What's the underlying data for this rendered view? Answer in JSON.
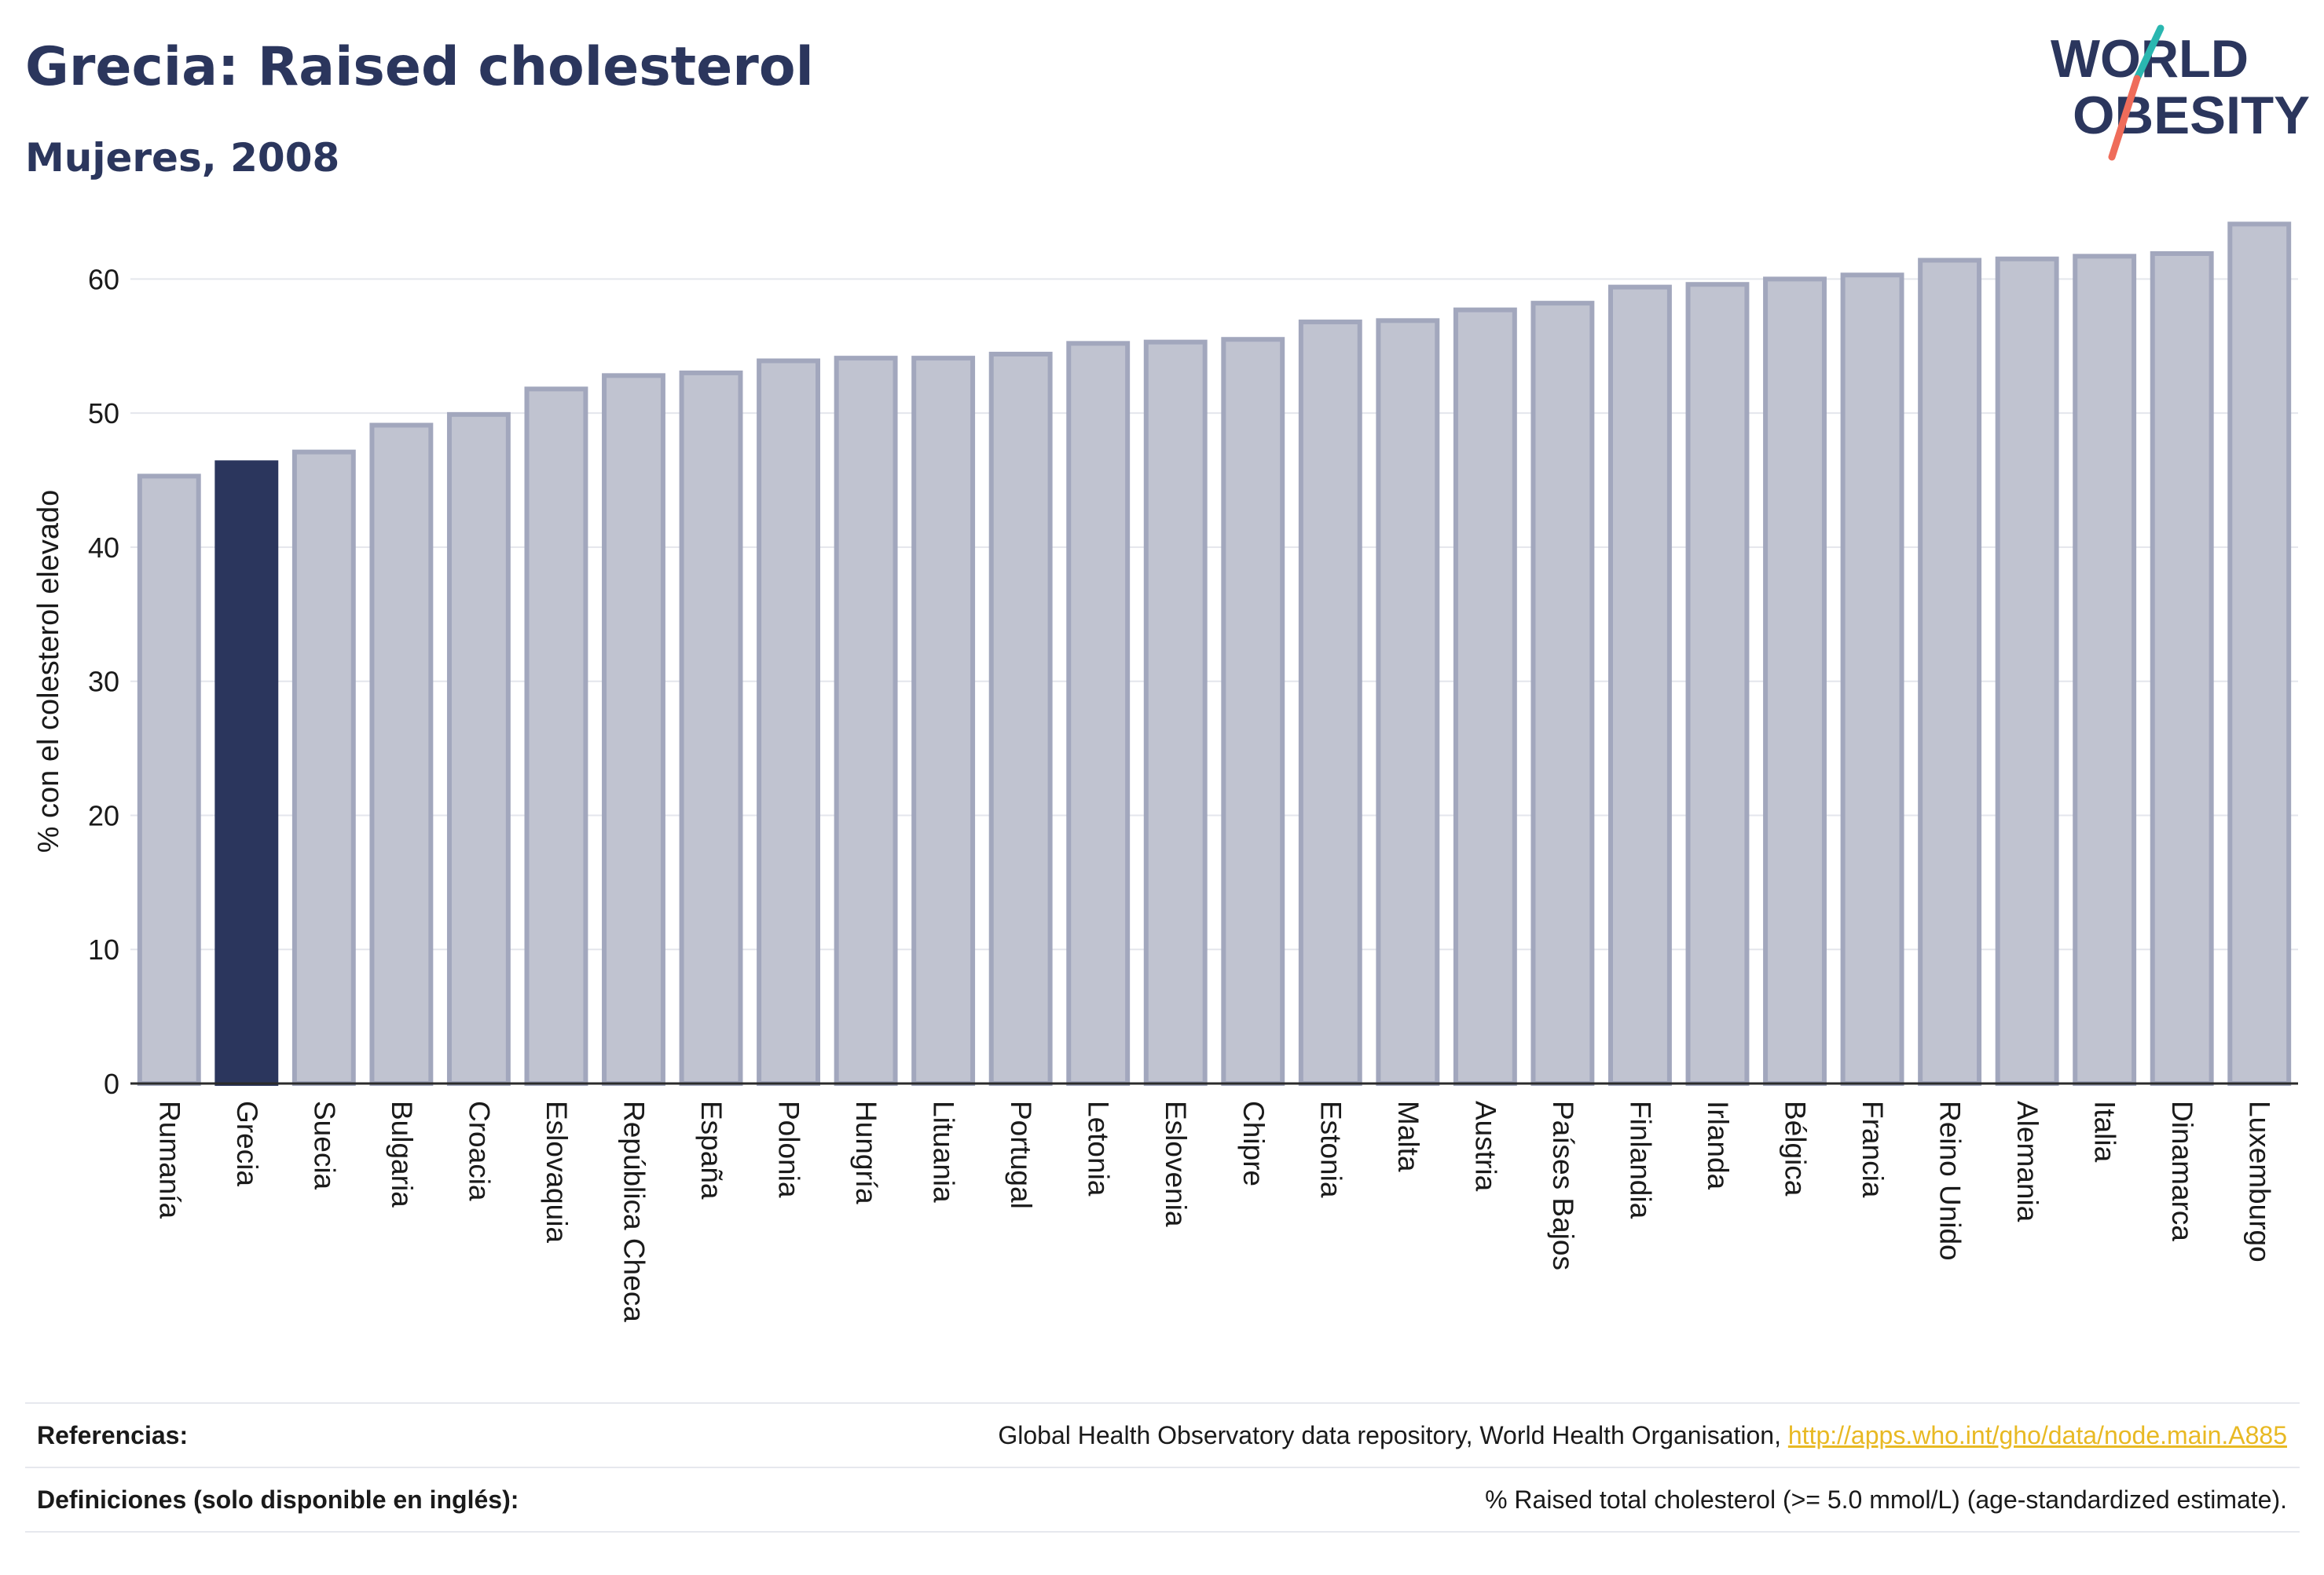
{
  "header": {
    "title": "Grecia: Raised cholesterol",
    "subtitle": "Mujeres, 2008"
  },
  "logo": {
    "line1": "WORLD",
    "line2": "OBESITY",
    "colors": {
      "text": "#2b365d",
      "slash_teal": "#2ab7b0",
      "slash_coral": "#ef6c5a"
    }
  },
  "colors": {
    "highlight_bar": "#2b365d",
    "other_bar_fill": "#c0c3d0",
    "other_bar_stroke": "#a2a7bd",
    "text": "#2b365d",
    "grid": "#e4e6ec"
  },
  "chart_data": {
    "type": "bar",
    "ylabel": "% con el colesterol elevado",
    "xlabel": "",
    "ylim": [
      0,
      65
    ],
    "yticks": [
      0,
      10,
      20,
      30,
      40,
      50,
      60
    ],
    "grid": true,
    "highlight": "Grecia",
    "categories": [
      "Rumanía",
      "Grecia",
      "Suecia",
      "Bulgaria",
      "Croacia",
      "Eslovaquia",
      "República Checa",
      "España",
      "Polonia",
      "Hungría",
      "Lituania",
      "Portugal",
      "Letonia",
      "Eslovenia",
      "Chipre",
      "Estonia",
      "Malta",
      "Austria",
      "Países Bajos",
      "Finlandia",
      "Irlanda",
      "Bélgica",
      "Francia",
      "Reino Unido",
      "Alemania",
      "Italia",
      "Dinamarca",
      "Luxemburgo"
    ],
    "values": [
      45.3,
      46.3,
      47.1,
      49.1,
      49.9,
      51.8,
      52.8,
      53.0,
      53.9,
      54.1,
      54.1,
      54.4,
      55.2,
      55.3,
      55.5,
      56.8,
      56.9,
      57.7,
      58.2,
      59.4,
      59.6,
      60.0,
      60.3,
      61.4,
      61.5,
      61.7,
      61.9,
      64.1
    ]
  },
  "footer": {
    "references_label": "Referencias:",
    "references_text": "Global Health Observatory data repository, World Health Organisation, ",
    "references_link": "http://apps.who.int/gho/data/node.main.A885",
    "definitions_label": "Definiciones (solo disponible en inglés):",
    "definitions_text": "% Raised total cholesterol (>= 5.0 mmol/L) (age-standardized estimate)."
  }
}
